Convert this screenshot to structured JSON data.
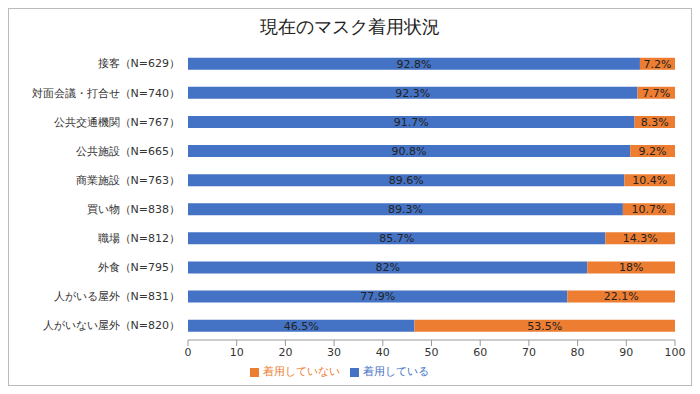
{
  "chart_data": {
    "type": "bar",
    "title": "現在のマスク着用状況",
    "orientation": "horizontal",
    "stacked": true,
    "data_labels": true,
    "grid": false,
    "legend": "bottom",
    "categories": [
      "接客（N=629）",
      "対面会議・打合せ（N=740）",
      "公共交通機関（N=767）",
      "公共施設（N=665）",
      "商業施設（N=763）",
      "買い物（N=838）",
      "職場（N=812）",
      "外食（N=795）",
      "人がいる屋外（N=831）",
      "人がいない屋外（N=820）"
    ],
    "series": [
      {
        "name": "着用している",
        "color": "#4472c4",
        "values": [
          92.8,
          92.3,
          91.7,
          90.8,
          89.6,
          89.3,
          85.7,
          82,
          77.9,
          46.5
        ],
        "value_labels": [
          "92.8%",
          "92.3%",
          "91.7%",
          "90.8%",
          "89.6%",
          "89.3%",
          "85.7%",
          "82%",
          "77.9%",
          "46.5%"
        ]
      },
      {
        "name": "着用していない",
        "color": "#ed7d31",
        "values": [
          7.2,
          7.7,
          8.3,
          9.2,
          10.4,
          10.7,
          14.3,
          18,
          22.1,
          53.5
        ],
        "value_labels": [
          "7.2%",
          "7.7%",
          "8.3%",
          "9.2%",
          "10.4%",
          "10.7%",
          "14.3%",
          "18%",
          "22.1%",
          "53.5%"
        ]
      }
    ],
    "xlim": [
      0,
      100
    ],
    "xticks": [
      0,
      10,
      20,
      30,
      40,
      50,
      60,
      70,
      80,
      90,
      100
    ]
  }
}
